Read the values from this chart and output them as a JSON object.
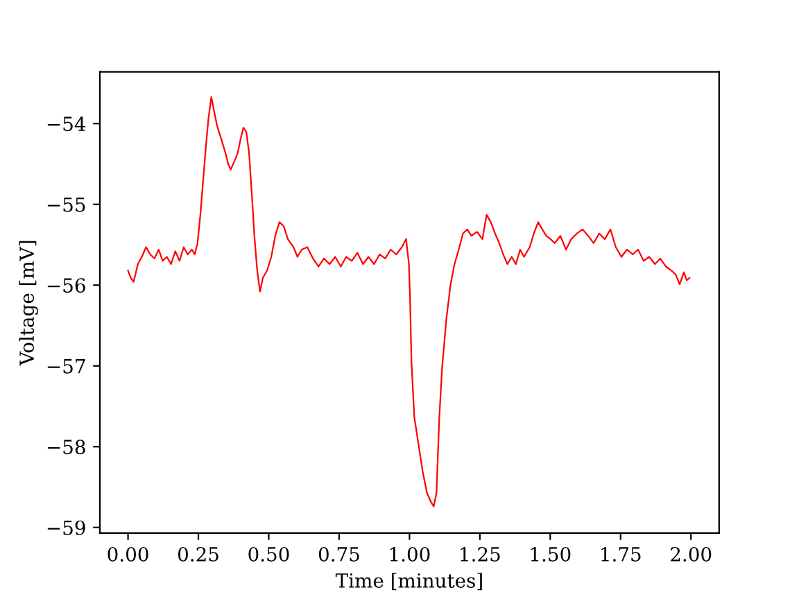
{
  "chart_data": {
    "type": "line",
    "xlabel": "Time [minutes]",
    "ylabel": "Voltage [mV]",
    "xlim": [
      -0.1,
      2.1
    ],
    "xticks": [
      {
        "value": 0,
        "label": "0.00"
      },
      {
        "value": 0.25,
        "label": "0.25"
      },
      {
        "value": 0.5,
        "label": "0.50"
      },
      {
        "value": 0.75,
        "label": "0.75"
      },
      {
        "value": 1,
        "label": "1.00"
      },
      {
        "value": 1.25,
        "label": "1.25"
      },
      {
        "value": 1.5,
        "label": "1.50"
      },
      {
        "value": 1.75,
        "label": "1.75"
      },
      {
        "value": 2,
        "label": "2.00"
      }
    ],
    "ylim": [
      -59.07,
      -53.36
    ],
    "yticks": [
      {
        "value": -59,
        "label": "−59"
      },
      {
        "value": -58,
        "label": "−58"
      },
      {
        "value": -57,
        "label": "−57"
      },
      {
        "value": -56,
        "label": "−56"
      },
      {
        "value": -55,
        "label": "−55"
      },
      {
        "value": -54,
        "label": "−54"
      }
    ],
    "marker": "none",
    "line_style": "solid",
    "series": [
      {
        "color": "#ff0000",
        "x": [
          0,
          0.01,
          0.02,
          0.035,
          0.049,
          0.064,
          0.079,
          0.094,
          0.109,
          0.123,
          0.138,
          0.153,
          0.168,
          0.183,
          0.198,
          0.212,
          0.227,
          0.237,
          0.247,
          0.257,
          0.267,
          0.277,
          0.286,
          0.296,
          0.306,
          0.316,
          0.331,
          0.346,
          0.356,
          0.365,
          0.38,
          0.39,
          0.4,
          0.41,
          0.42,
          0.43,
          0.44,
          0.449,
          0.459,
          0.469,
          0.479,
          0.494,
          0.509,
          0.523,
          0.538,
          0.553,
          0.568,
          0.588,
          0.602,
          0.617,
          0.637,
          0.657,
          0.677,
          0.696,
          0.716,
          0.736,
          0.756,
          0.775,
          0.795,
          0.815,
          0.835,
          0.854,
          0.874,
          0.894,
          0.914,
          0.933,
          0.953,
          0.973,
          0.988,
          0.998,
          1.002,
          1.007,
          1.017,
          1.032,
          1.047,
          1.062,
          1.077,
          1.086,
          1.096,
          1.106,
          1.116,
          1.131,
          1.146,
          1.16,
          1.175,
          1.19,
          1.205,
          1.22,
          1.24,
          1.259,
          1.274,
          1.289,
          1.304,
          1.319,
          1.333,
          1.348,
          1.363,
          1.378,
          1.393,
          1.407,
          1.427,
          1.442,
          1.457,
          1.472,
          1.486,
          1.501,
          1.516,
          1.536,
          1.556,
          1.575,
          1.595,
          1.615,
          1.635,
          1.654,
          1.674,
          1.694,
          1.714,
          1.733,
          1.753,
          1.773,
          1.793,
          1.812,
          1.832,
          1.852,
          1.872,
          1.891,
          1.911,
          1.931,
          1.946,
          1.96,
          1.975,
          1.985,
          1.995
        ],
        "values": [
          -55.82,
          -55.91,
          -55.96,
          -55.74,
          -55.65,
          -55.53,
          -55.62,
          -55.67,
          -55.56,
          -55.7,
          -55.65,
          -55.74,
          -55.58,
          -55.7,
          -55.53,
          -55.62,
          -55.56,
          -55.62,
          -55.48,
          -55.13,
          -54.7,
          -54.27,
          -53.93,
          -53.67,
          -53.85,
          -54.02,
          -54.19,
          -54.36,
          -54.5,
          -54.57,
          -54.45,
          -54.36,
          -54.19,
          -54.05,
          -54.1,
          -54.36,
          -54.88,
          -55.39,
          -55.82,
          -56.08,
          -55.91,
          -55.82,
          -55.65,
          -55.39,
          -55.22,
          -55.27,
          -55.43,
          -55.53,
          -55.65,
          -55.56,
          -55.53,
          -55.67,
          -55.77,
          -55.67,
          -55.74,
          -55.65,
          -55.77,
          -55.65,
          -55.7,
          -55.6,
          -55.74,
          -55.65,
          -55.74,
          -55.62,
          -55.67,
          -55.56,
          -55.62,
          -55.53,
          -55.43,
          -55.74,
          -56.16,
          -56.94,
          -57.63,
          -57.97,
          -58.31,
          -58.57,
          -58.69,
          -58.74,
          -58.57,
          -57.63,
          -57.02,
          -56.42,
          -55.99,
          -55.74,
          -55.56,
          -55.36,
          -55.31,
          -55.39,
          -55.34,
          -55.43,
          -55.13,
          -55.22,
          -55.36,
          -55.48,
          -55.62,
          -55.74,
          -55.65,
          -55.74,
          -55.56,
          -55.65,
          -55.53,
          -55.36,
          -55.22,
          -55.31,
          -55.39,
          -55.43,
          -55.48,
          -55.39,
          -55.56,
          -55.43,
          -55.36,
          -55.31,
          -55.39,
          -55.48,
          -55.36,
          -55.43,
          -55.31,
          -55.53,
          -55.65,
          -55.56,
          -55.62,
          -55.56,
          -55.7,
          -55.65,
          -55.74,
          -55.67,
          -55.77,
          -55.82,
          -55.87,
          -55.99,
          -55.84,
          -55.94,
          -55.91
        ]
      }
    ]
  }
}
